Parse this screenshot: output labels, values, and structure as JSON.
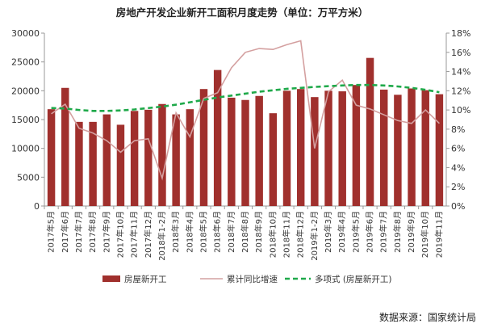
{
  "chart_data": {
    "type": "bar",
    "title": "房地产开发企业新开工面积月度走势（单位：万平方米）",
    "categories": [
      "2017年5月",
      "2017年6月",
      "2017年7月",
      "2017年8月",
      "2017年9月",
      "2017年10月",
      "2017年11月",
      "2017年12月",
      "2018年1-2月",
      "2018年3月",
      "2018年4月",
      "2018年5月",
      "2018年6月",
      "2018年7月",
      "2018年8月",
      "2018年9月",
      "2018年10月",
      "2018年11月",
      "2018年12月",
      "2019年1-2月",
      "2019年3月",
      "2019年4月",
      "2019年5月",
      "2019年6月",
      "2019年7月",
      "2019年8月",
      "2019年9月",
      "2019年10月",
      "2019年11月"
    ],
    "series": [
      {
        "name": "房屋新开工",
        "type": "bar",
        "axis": "left",
        "color": "#A0302D",
        "values": [
          16800,
          20500,
          14600,
          14600,
          15900,
          14100,
          16500,
          16700,
          17700,
          15900,
          16800,
          20300,
          23600,
          18800,
          18400,
          19100,
          16100,
          20000,
          20300,
          18900,
          20000,
          19900,
          21000,
          25700,
          20200,
          19300,
          20400,
          20100,
          19400
        ]
      },
      {
        "name": "累计同比增速",
        "type": "line",
        "axis": "right",
        "color": "#D4A0A0",
        "values": [
          9.6,
          10.6,
          8.1,
          7.6,
          6.8,
          5.6,
          6.8,
          7.0,
          2.9,
          9.7,
          7.2,
          11.2,
          11.8,
          14.4,
          16.0,
          16.4,
          16.3,
          16.8,
          17.2,
          6.0,
          11.9,
          13.1,
          10.5,
          10.1,
          9.5,
          8.9,
          8.6,
          10.0,
          8.6
        ]
      },
      {
        "name": "多项式 (房屋新开工)",
        "type": "trend",
        "axis": "right",
        "color": "#1FA94A",
        "values": [
          10.2,
          10.15,
          10.0,
          9.9,
          9.9,
          9.95,
          10.05,
          10.2,
          10.35,
          10.55,
          10.8,
          11.05,
          11.3,
          11.5,
          11.7,
          11.9,
          12.05,
          12.2,
          12.3,
          12.4,
          12.48,
          12.55,
          12.6,
          12.6,
          12.55,
          12.45,
          12.3,
          12.1,
          11.85
        ]
      }
    ],
    "y_left": {
      "min": 0,
      "max": 30000,
      "ticks": [
        "0",
        "5000",
        "10000",
        "15000",
        "20000",
        "25000",
        "30000"
      ]
    },
    "y_right": {
      "min": 0,
      "max": 18,
      "ticks": [
        "0%",
        "2%",
        "4%",
        "6%",
        "8%",
        "10%",
        "12%",
        "14%",
        "16%",
        "18%"
      ]
    },
    "grid": false,
    "legend_position": "bottom"
  },
  "source_text": "数据来源：国家统计局"
}
